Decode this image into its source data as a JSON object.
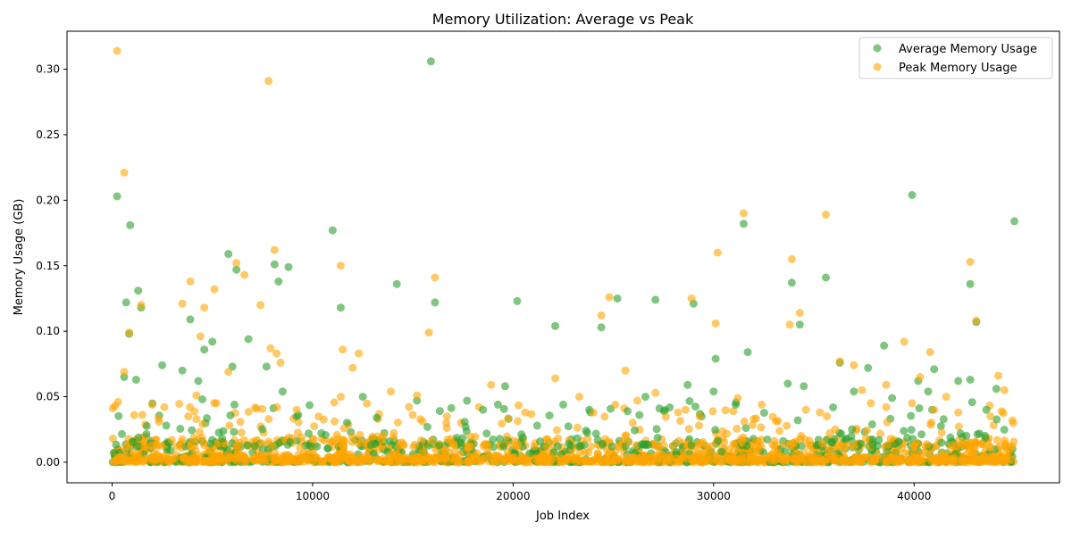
{
  "chart_data": {
    "type": "scatter",
    "title": "Memory Utilization: Average vs Peak",
    "xlabel": "Job Index",
    "ylabel": "Memory Usage (GB)",
    "xlim": [
      -2250,
      47250
    ],
    "ylim": [
      -0.0157,
      0.329
    ],
    "x_ticks": [
      0,
      10000,
      20000,
      30000,
      40000
    ],
    "x_tick_labels": [
      "0",
      "10000",
      "20000",
      "30000",
      "40000"
    ],
    "y_ticks": [
      0.0,
      0.05,
      0.1,
      0.15,
      0.2,
      0.25,
      0.3
    ],
    "y_tick_labels": [
      "0.00",
      "0.05",
      "0.10",
      "0.15",
      "0.20",
      "0.25",
      "0.30"
    ],
    "grid": false,
    "legend_position": "upper right",
    "series": [
      {
        "name": "Average Memory Usage",
        "color": "#2ca02c",
        "opacity": 0.6,
        "points": [
          [
            250,
            0.203
          ],
          [
            700,
            0.122
          ],
          [
            900,
            0.181
          ],
          [
            850,
            0.098
          ],
          [
            1300,
            0.131
          ],
          [
            1450,
            0.118
          ],
          [
            3500,
            0.07
          ],
          [
            3900,
            0.109
          ],
          [
            4300,
            0.062
          ],
          [
            4500,
            0.048
          ],
          [
            4600,
            0.086
          ],
          [
            5000,
            0.092
          ],
          [
            5800,
            0.159
          ],
          [
            6000,
            0.073
          ],
          [
            6200,
            0.147
          ],
          [
            6800,
            0.094
          ],
          [
            7700,
            0.073
          ],
          [
            8100,
            0.151
          ],
          [
            8300,
            0.138
          ],
          [
            8500,
            0.054
          ],
          [
            8800,
            0.149
          ],
          [
            11000,
            0.177
          ],
          [
            11400,
            0.118
          ],
          [
            14200,
            0.136
          ],
          [
            15900,
            0.306
          ],
          [
            16100,
            0.122
          ],
          [
            20200,
            0.123
          ],
          [
            22100,
            0.104
          ],
          [
            24400,
            0.103
          ],
          [
            25200,
            0.125
          ],
          [
            27100,
            0.124
          ],
          [
            29000,
            0.121
          ],
          [
            30100,
            0.079
          ],
          [
            31500,
            0.182
          ],
          [
            31700,
            0.084
          ],
          [
            33900,
            0.137
          ],
          [
            34300,
            0.105
          ],
          [
            35600,
            0.141
          ],
          [
            36300,
            0.076
          ],
          [
            37000,
            0.054
          ],
          [
            39900,
            0.204
          ],
          [
            40200,
            0.062
          ],
          [
            40700,
            0.054
          ],
          [
            42800,
            0.136
          ],
          [
            43100,
            0.107
          ],
          [
            45000,
            0.184
          ],
          [
            600,
            0.065
          ],
          [
            1200,
            0.063
          ],
          [
            2500,
            0.074
          ],
          [
            9200,
            0.035
          ],
          [
            12500,
            0.05
          ],
          [
            15200,
            0.047
          ],
          [
            17700,
            0.047
          ],
          [
            19600,
            0.058
          ],
          [
            22500,
            0.044
          ],
          [
            26300,
            0.036
          ],
          [
            27300,
            0.041
          ],
          [
            28700,
            0.059
          ],
          [
            30000,
            0.054
          ],
          [
            31100,
            0.044
          ],
          [
            33700,
            0.06
          ],
          [
            34500,
            0.058
          ],
          [
            37700,
            0.072
          ],
          [
            38500,
            0.089
          ],
          [
            41000,
            0.071
          ],
          [
            42200,
            0.062
          ],
          [
            42800,
            0.063
          ],
          [
            44100,
            0.056
          ],
          [
            43600,
            0.04
          ],
          [
            40900,
            0.04
          ],
          [
            38900,
            0.049
          ],
          [
            26600,
            0.05
          ],
          [
            23800,
            0.04
          ],
          [
            21200,
            0.028
          ],
          [
            18500,
            0.04
          ],
          [
            13200,
            0.034
          ],
          [
            6100,
            0.044
          ],
          [
            2700,
            0.028
          ],
          [
            9800,
            0.022
          ],
          [
            34200,
            0.032
          ],
          [
            29400,
            0.035
          ]
        ]
      },
      {
        "name": "Peak Memory Usage",
        "color": "#ffa500",
        "opacity": 0.6,
        "points": [
          [
            250,
            0.314
          ],
          [
            600,
            0.221
          ],
          [
            850,
            0.099
          ],
          [
            1450,
            0.12
          ],
          [
            3500,
            0.121
          ],
          [
            3900,
            0.138
          ],
          [
            4400,
            0.096
          ],
          [
            4600,
            0.118
          ],
          [
            5100,
            0.132
          ],
          [
            6200,
            0.152
          ],
          [
            6600,
            0.143
          ],
          [
            7400,
            0.12
          ],
          [
            7800,
            0.291
          ],
          [
            7900,
            0.087
          ],
          [
            8100,
            0.162
          ],
          [
            8400,
            0.076
          ],
          [
            11400,
            0.15
          ],
          [
            11500,
            0.086
          ],
          [
            12300,
            0.083
          ],
          [
            15800,
            0.099
          ],
          [
            16100,
            0.141
          ],
          [
            24400,
            0.112
          ],
          [
            24800,
            0.126
          ],
          [
            25600,
            0.07
          ],
          [
            28900,
            0.125
          ],
          [
            30100,
            0.106
          ],
          [
            30200,
            0.16
          ],
          [
            31500,
            0.19
          ],
          [
            33900,
            0.155
          ],
          [
            34300,
            0.114
          ],
          [
            33800,
            0.105
          ],
          [
            35600,
            0.189
          ],
          [
            36300,
            0.077
          ],
          [
            37000,
            0.074
          ],
          [
            39500,
            0.092
          ],
          [
            40800,
            0.084
          ],
          [
            42800,
            0.153
          ],
          [
            43100,
            0.108
          ],
          [
            44200,
            0.066
          ],
          [
            44500,
            0.055
          ],
          [
            600,
            0.069
          ],
          [
            4200,
            0.051
          ],
          [
            5800,
            0.069
          ],
          [
            9200,
            0.04
          ],
          [
            11400,
            0.05
          ],
          [
            13900,
            0.054
          ],
          [
            15200,
            0.051
          ],
          [
            18900,
            0.059
          ],
          [
            22100,
            0.064
          ],
          [
            23300,
            0.05
          ],
          [
            26200,
            0.047
          ],
          [
            27100,
            0.053
          ],
          [
            28600,
            0.04
          ],
          [
            31200,
            0.049
          ],
          [
            32400,
            0.044
          ],
          [
            34600,
            0.04
          ],
          [
            37400,
            0.055
          ],
          [
            38600,
            0.059
          ],
          [
            40300,
            0.065
          ],
          [
            41600,
            0.05
          ],
          [
            42200,
            0.038
          ],
          [
            43800,
            0.035
          ],
          [
            44900,
            0.032
          ],
          [
            2000,
            0.044
          ],
          [
            3800,
            0.035
          ],
          [
            10300,
            0.035
          ],
          [
            12000,
            0.072
          ],
          [
            16700,
            0.035
          ],
          [
            20600,
            0.038
          ],
          [
            24000,
            0.038
          ],
          [
            29300,
            0.035
          ],
          [
            32000,
            0.033
          ],
          [
            35300,
            0.038
          ],
          [
            39900,
            0.045
          ],
          [
            41000,
            0.04
          ],
          [
            300,
            0.046
          ],
          [
            1100,
            0.036
          ],
          [
            2600,
            0.042
          ],
          [
            5200,
            0.045
          ],
          [
            7200,
            0.041
          ],
          [
            8200,
            0.083
          ]
        ]
      }
    ]
  }
}
